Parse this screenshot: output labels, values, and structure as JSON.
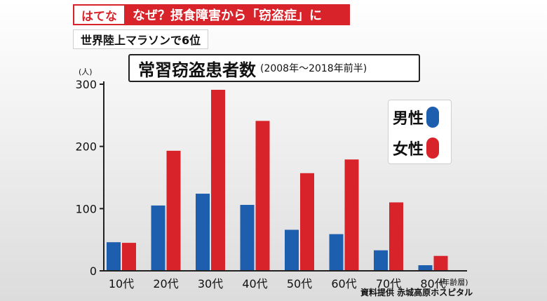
{
  "banner": {
    "tag": "はてな",
    "headline": "なぜ？摂食障害から「窃盗症」に"
  },
  "sub_banner": "世界陸上マラソンで6位",
  "credit": "資料提供 赤城高原ホスピタル",
  "colors": {
    "male": "#1d5fae",
    "female": "#d8232a",
    "banner": "#d8232a"
  },
  "chart_data": {
    "type": "bar",
    "title": "常習窃盗患者数",
    "subtitle": "(2008年〜2018年前半)",
    "ylabel": "(人)",
    "xlabel": "(年齢層)",
    "ylim": [
      0,
      300
    ],
    "yticks": [
      "0",
      "100",
      "200",
      "300"
    ],
    "categories": [
      "10代",
      "20代",
      "30代",
      "40代",
      "50代",
      "60代",
      "70代",
      "80代"
    ],
    "series": [
      {
        "name": "男性",
        "color": "#1d5fae",
        "values": [
          46,
          105,
          124,
          106,
          66,
          59,
          33,
          9
        ]
      },
      {
        "name": "女性",
        "color": "#d8232a",
        "values": [
          45,
          193,
          291,
          241,
          157,
          179,
          110,
          24
        ]
      }
    ],
    "legend": "right",
    "grid": false
  }
}
